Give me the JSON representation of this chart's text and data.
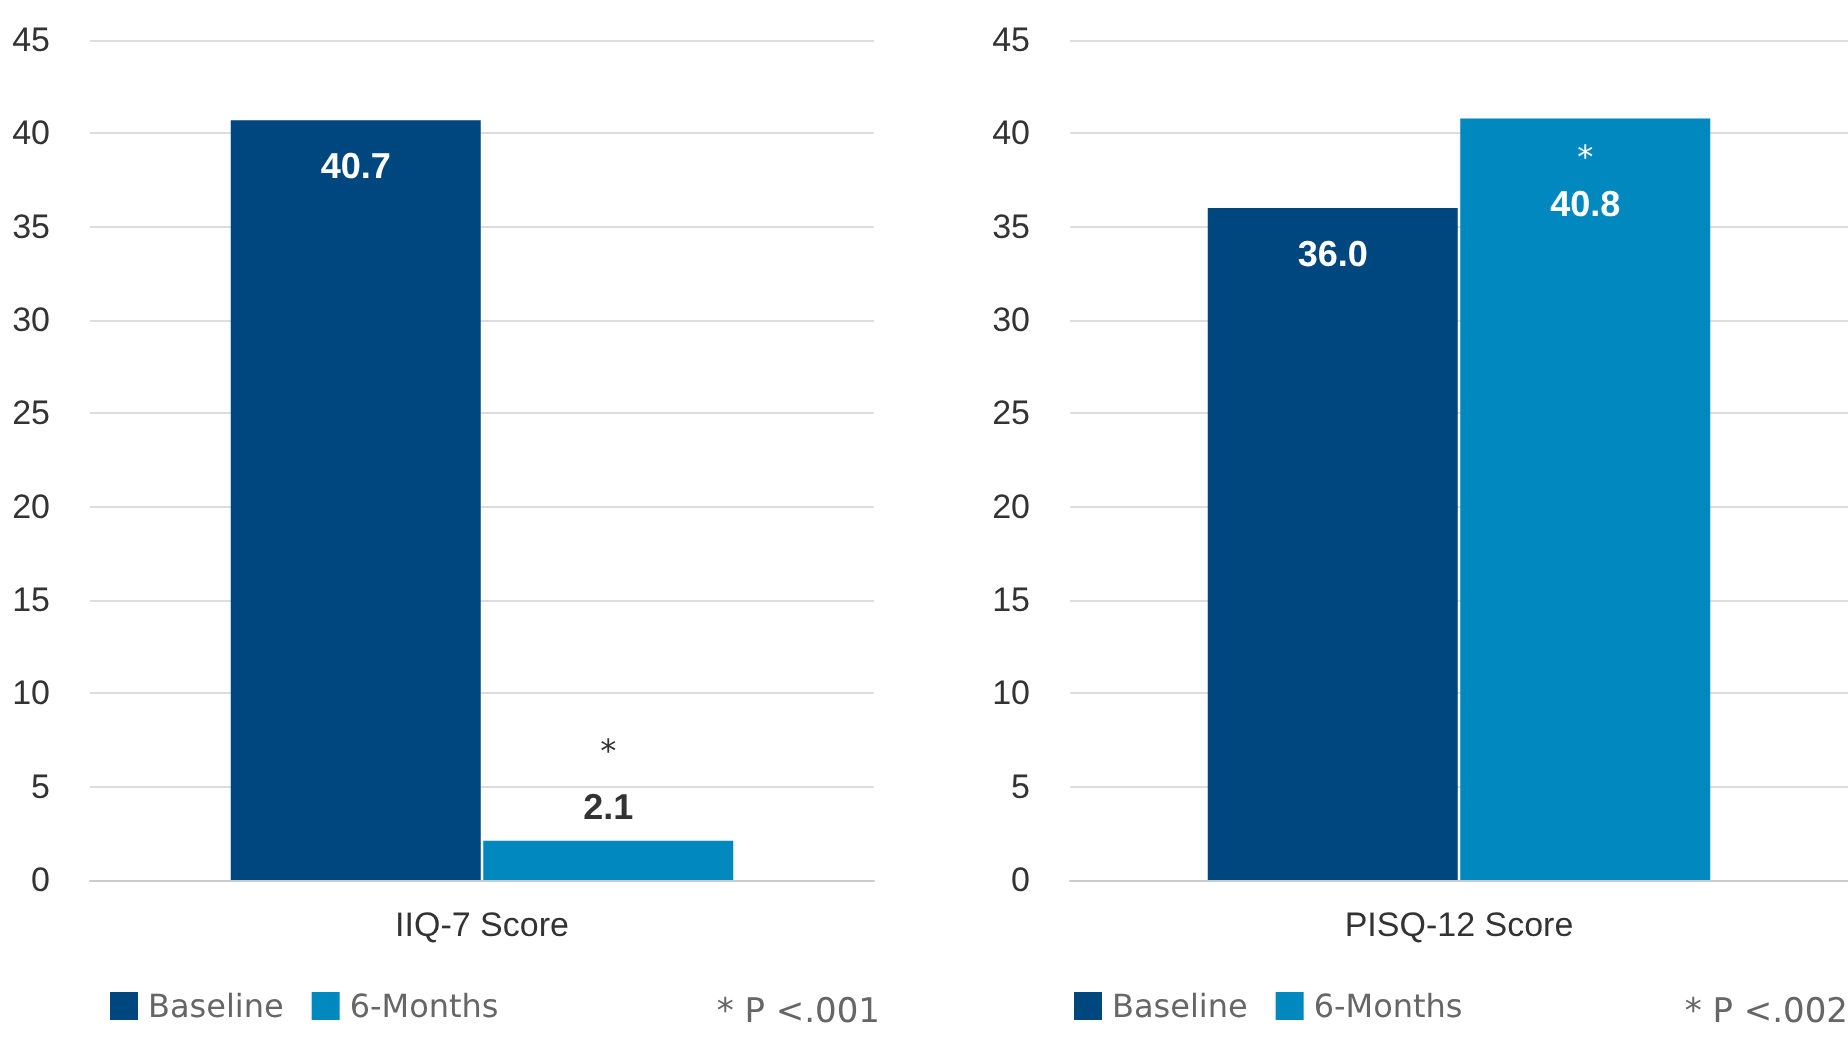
{
  "chart_data": [
    {
      "type": "bar",
      "categories": [
        "IIQ-7 Score"
      ],
      "series": [
        {
          "name": "Baseline",
          "color": "#00467f",
          "values": [
            40.7
          ],
          "value_labels": [
            "40.7"
          ]
        },
        {
          "name": "6-Months",
          "color": "#0088bf",
          "values": [
            2.1
          ],
          "value_labels": [
            "2.1"
          ]
        }
      ],
      "ylim": [
        0,
        45
      ],
      "yticks": [
        0,
        5,
        10,
        15,
        20,
        25,
        30,
        35,
        40,
        45
      ],
      "grid": "y",
      "legend": "bottom left",
      "annotations": [
        "*",
        "* P <.001"
      ]
    },
    {
      "type": "bar",
      "categories": [
        "PISQ-12 Score"
      ],
      "series": [
        {
          "name": "Baseline",
          "color": "#00467f",
          "values": [
            36.0
          ],
          "value_labels": [
            "36.0"
          ]
        },
        {
          "name": "6-Months",
          "color": "#0088bf",
          "values": [
            40.8
          ],
          "value_labels": [
            "40.8"
          ]
        }
      ],
      "ylim": [
        0,
        45
      ],
      "yticks": [
        0,
        5,
        10,
        15,
        20,
        25,
        30,
        35,
        40,
        45
      ],
      "grid": "y",
      "legend": "bottom left",
      "annotations": [
        "*",
        "* P <.002"
      ]
    }
  ]
}
